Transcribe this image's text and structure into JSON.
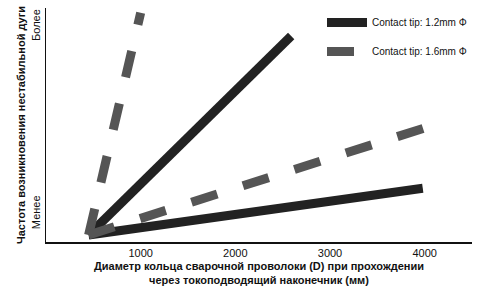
{
  "chart_data": {
    "type": "line",
    "x_label": "Диаметр кольца сварочной проволоки (D) при прохождении\nчерез токоподводящий наконечник (мм)",
    "y_label": "Частота возникновения нестабильной дуги",
    "xlim": [
      0,
      4500
    ],
    "xticks": [
      1000,
      2000,
      3000,
      4000
    ],
    "ylim": [
      0,
      100
    ],
    "yticks": [
      {
        "value": 12,
        "label": "Менее"
      },
      {
        "value": 92,
        "label": "Более"
      }
    ],
    "grid": false,
    "legend": "upper right",
    "series": [
      {
        "name": "Contact tip: 1.2mm Φ",
        "color": "#222222",
        "line_style": "solid",
        "x": [
          450,
          2590
        ],
        "values": [
          3,
          88
        ]
      },
      {
        "name": "Contact tip: 1.2mm Φ",
        "color": "#222222",
        "line_style": "solid",
        "x": [
          450,
          3980
        ],
        "values": [
          3,
          23
        ]
      },
      {
        "name": "Contact tip: 1.6mm Φ",
        "color": "#555555",
        "line_style": "dash",
        "x": [
          450,
          1000
        ],
        "values": [
          3,
          98
        ]
      },
      {
        "name": "Contact tip: 1.6mm Φ",
        "color": "#555555",
        "line_style": "dash",
        "x": [
          450,
          4020
        ],
        "values": [
          3,
          49
        ]
      }
    ]
  }
}
